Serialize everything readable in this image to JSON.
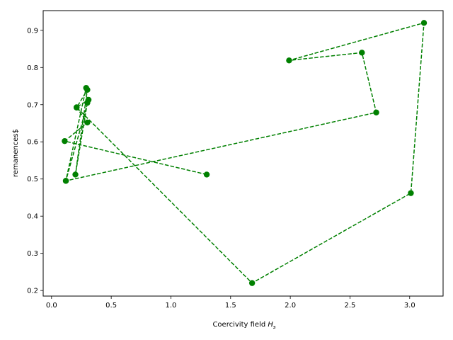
{
  "chart_data": {
    "type": "line",
    "title": "",
    "xlabel": "Coercivity field",
    "xlabel_var": "H",
    "xlabel_sub": "s",
    "ylabel": "remanences$",
    "xlim": [
      -0.07,
      3.28
    ],
    "ylim": [
      0.185,
      0.953
    ],
    "xticks": [
      0.0,
      0.5,
      1.0,
      1.5,
      2.0,
      2.5,
      3.0
    ],
    "xtick_labels": [
      "0.0",
      "0.5",
      "1.0",
      "1.5",
      "2.0",
      "2.5",
      "3.0"
    ],
    "yticks": [
      0.2,
      0.3,
      0.4,
      0.5,
      0.6,
      0.7,
      0.8,
      0.9
    ],
    "ytick_labels": [
      "0.2",
      "0.3",
      "0.4",
      "0.5",
      "0.6",
      "0.7",
      "0.8",
      "0.9"
    ],
    "grid": false,
    "legend": "none",
    "series": [
      {
        "color": "#008000",
        "linestyle": "dashed",
        "marker": "circle",
        "x": [
          1.3,
          0.11,
          0.3,
          0.21,
          0.3,
          0.2,
          0.3,
          0.29,
          0.12,
          0.31,
          0.21,
          1.68,
          3.01,
          3.12,
          1.99,
          2.6,
          2.72,
          0.12
        ],
        "y": [
          0.512,
          0.602,
          0.652,
          0.692,
          0.74,
          0.512,
          0.705,
          0.745,
          0.495,
          0.713,
          0.693,
          0.22,
          0.462,
          0.92,
          0.819,
          0.84,
          0.679,
          0.495
        ]
      }
    ]
  }
}
